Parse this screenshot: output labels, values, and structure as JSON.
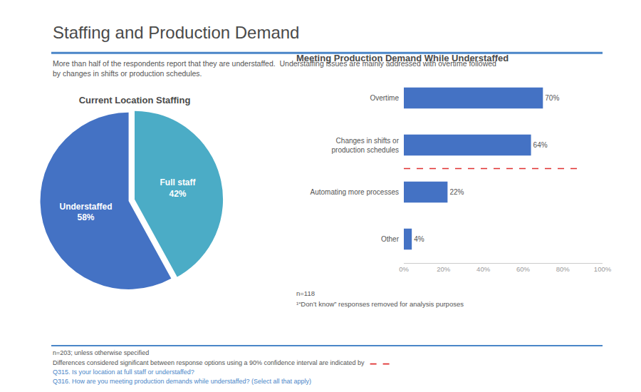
{
  "title": "Staffing and Production Demand",
  "subtitle": "More than half of the respondents report that they are understaffed.  Understaffing issues are mainly addressed with overtime followed\nby changes in shifts or production schedules.",
  "color": "#4a86c8",
  "chart_data": [
    {
      "type": "pie",
      "title": "Current Location Staffing",
      "categories": [
        "Full staff",
        "Understaffed"
      ],
      "values": [
        42,
        58
      ],
      "value_labels": [
        "42%",
        "58%"
      ],
      "colors": [
        "#4bacc6",
        "#4472c4"
      ],
      "data_labels": true,
      "legend": false
    },
    {
      "type": "bar",
      "orientation": "horizontal",
      "title": "Meeting Production Demand While Understaffed",
      "categories": [
        "Overtime",
        "Changes in shifts or\nproduction schedules",
        "Automating more processes",
        "Other"
      ],
      "values": [
        70,
        64,
        22,
        4
      ],
      "value_labels": [
        "70%",
        "64%",
        "22%",
        "4%"
      ],
      "color": "#4472c4",
      "data_labels": true,
      "grid": false,
      "xlim": [
        0,
        100
      ],
      "xticks": [
        {
          "value": 0,
          "label": "0%"
        },
        {
          "value": 20,
          "label": "20%"
        },
        {
          "value": 40,
          "label": "40%"
        },
        {
          "value": 60,
          "label": "60%"
        },
        {
          "value": 80,
          "label": "80%"
        },
        {
          "value": 100,
          "label": "100%"
        }
      ],
      "notes": [
        "n=118",
        "¹“Don’t know” responses removed for analysis purposes"
      ],
      "separator": {
        "color": "#e03030",
        "line_style": "dashed"
      }
    }
  ],
  "footer": {
    "notes": [
      "n=203; unless otherwise specified",
      "Differences considered significant between response options using a 90% confidence interval are indicated by"
    ],
    "marker": {
      "color": "#e03030",
      "line_style": "dashed"
    },
    "questions": [
      "Q315. Is your location at full staff or understaffed?",
      "Q316. How are you meeting production demands while understaffed? (Select all that apply)"
    ]
  }
}
